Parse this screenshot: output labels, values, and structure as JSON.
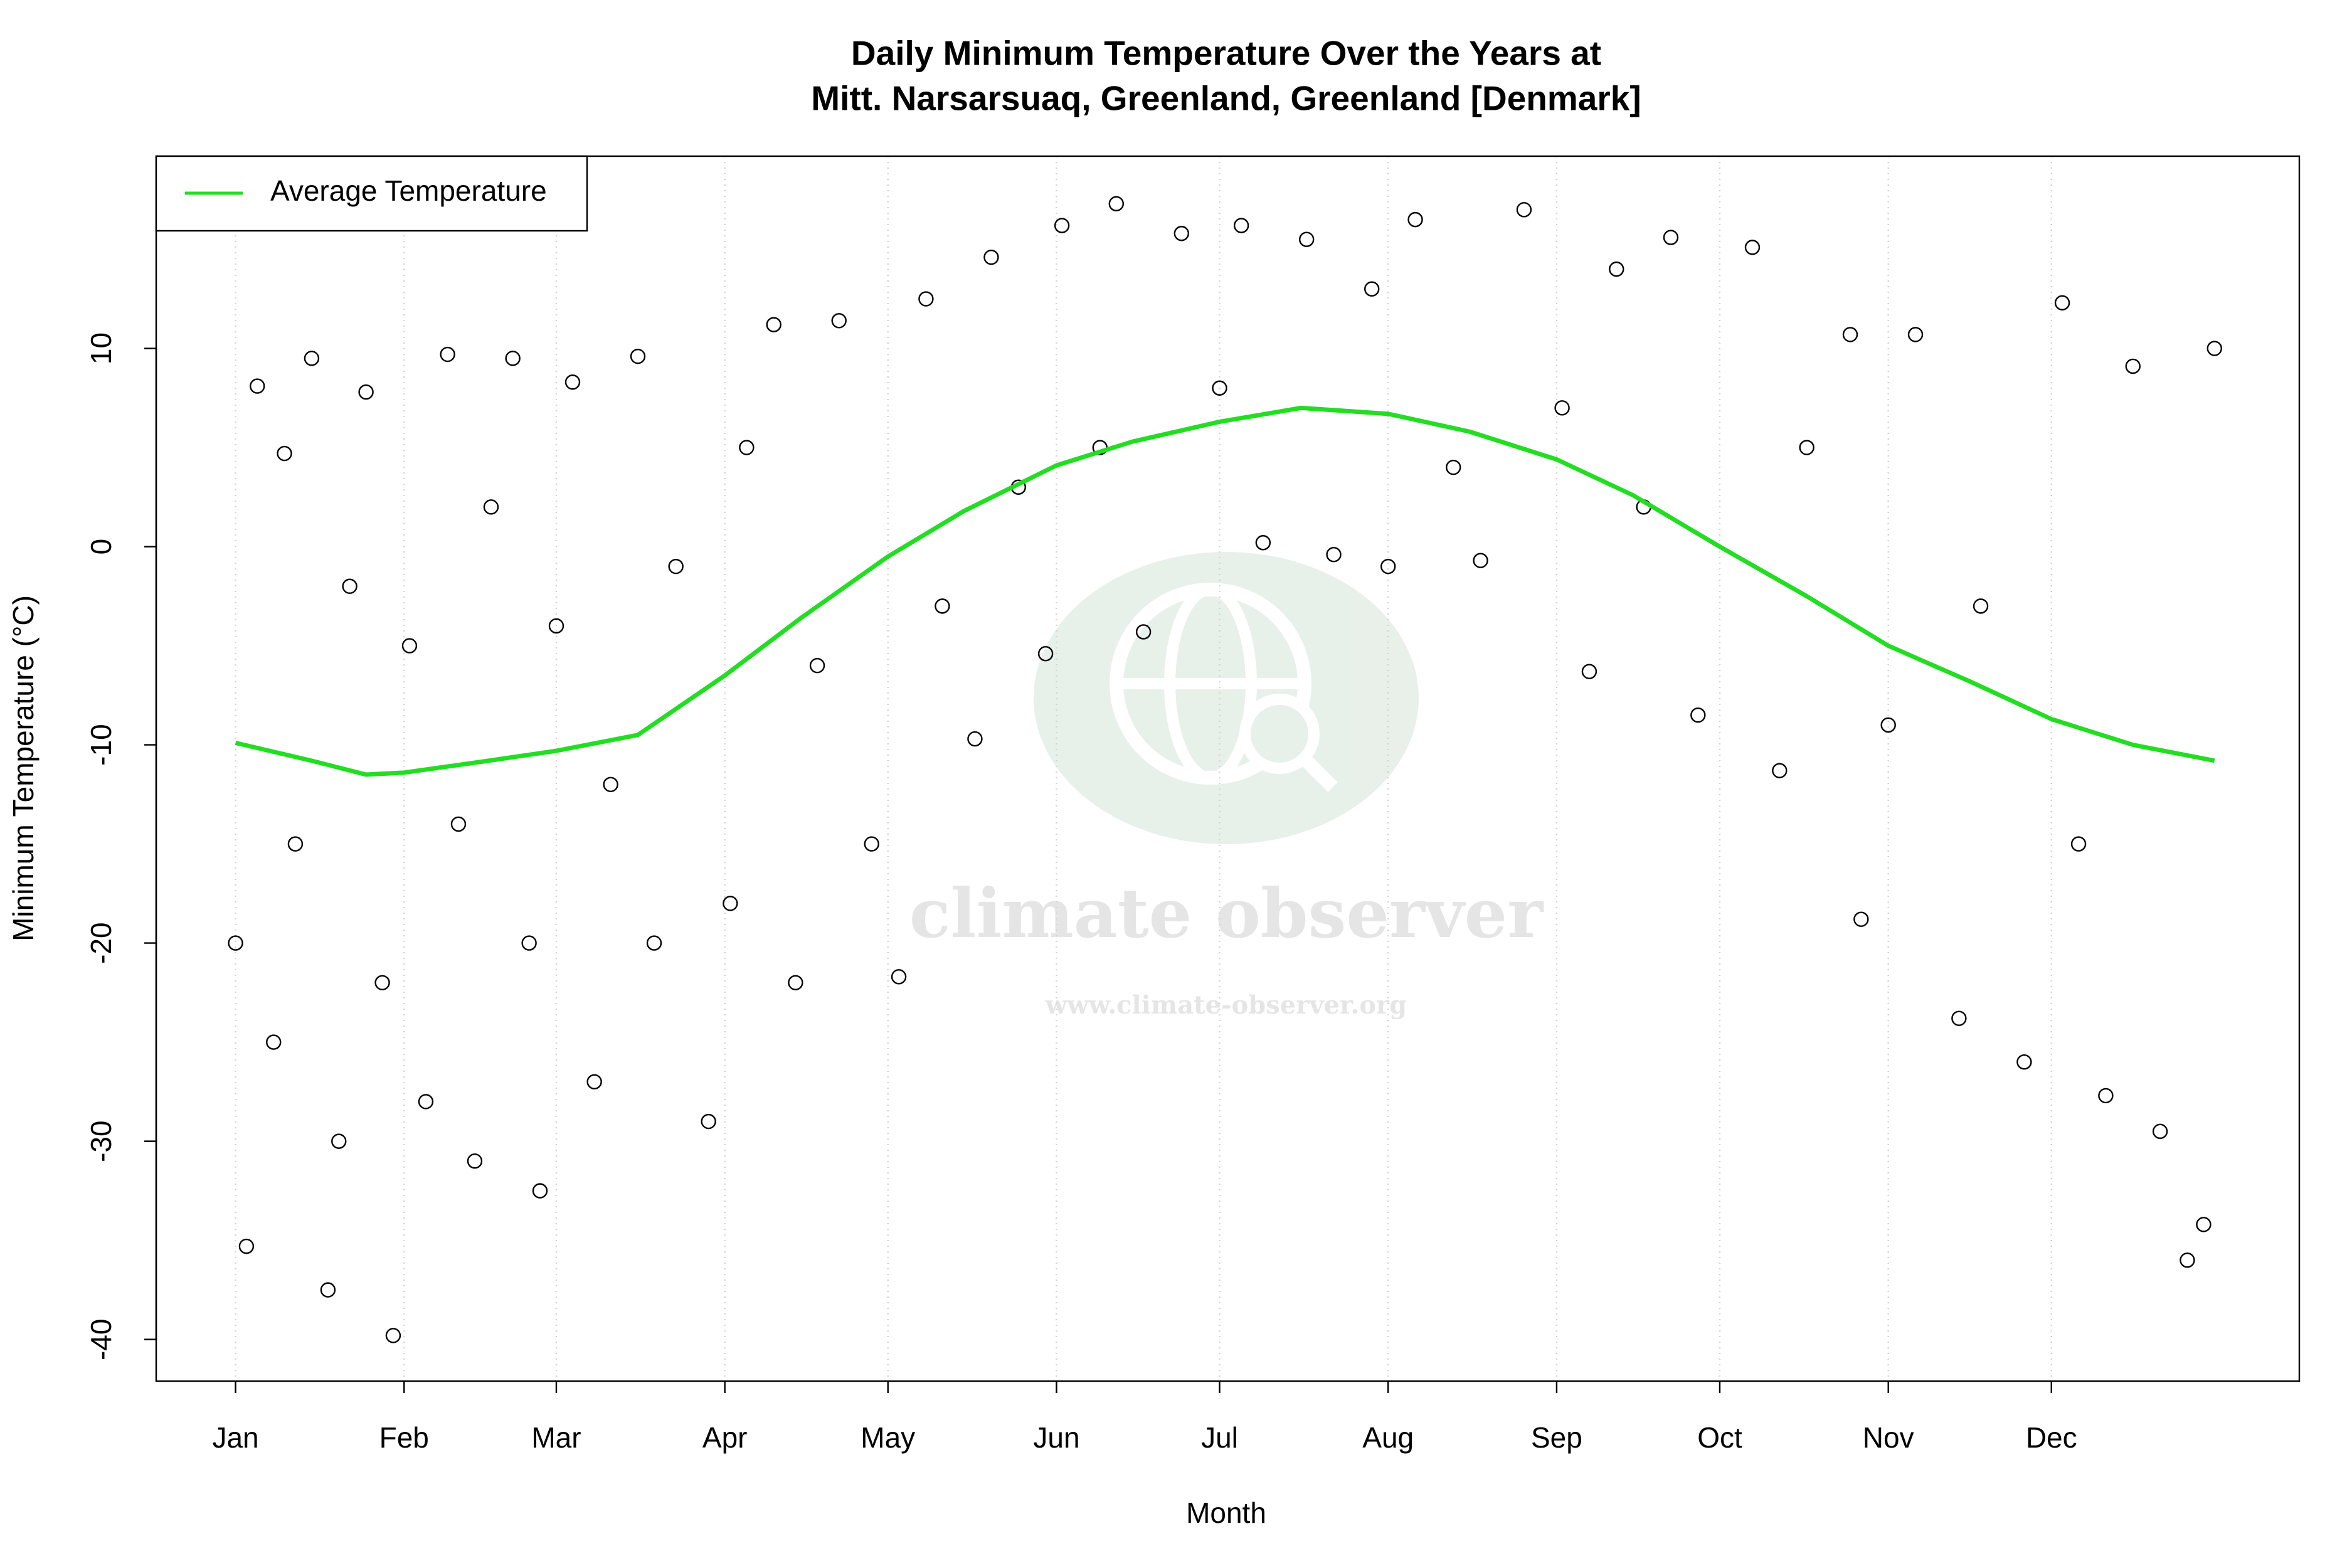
{
  "chart_data": {
    "type": "scatter",
    "title": [
      "Daily Minimum Temperature Over the Years at",
      "Mitt. Narsarsuaq, Greenland, Greenland [Denmark]"
    ],
    "xlabel": "Month",
    "ylabel": "Minimum Temperature (°C)",
    "xlim": [
      -13.6,
      380.6
    ],
    "ylim": [
      -42.1,
      19.7
    ],
    "xticks": [
      {
        "value": 1,
        "label": "Jan"
      },
      {
        "value": 32,
        "label": "Feb"
      },
      {
        "value": 60,
        "label": "Mar"
      },
      {
        "value": 91,
        "label": "Apr"
      },
      {
        "value": 121,
        "label": "May"
      },
      {
        "value": 152,
        "label": "Jun"
      },
      {
        "value": 182,
        "label": "Jul"
      },
      {
        "value": 213,
        "label": "Aug"
      },
      {
        "value": 244,
        "label": "Sep"
      },
      {
        "value": 274,
        "label": "Oct"
      },
      {
        "value": 305,
        "label": "Nov"
      },
      {
        "value": 335,
        "label": "Dec"
      }
    ],
    "yticks": [
      -40,
      -30,
      -20,
      -10,
      0,
      10
    ],
    "grid": true,
    "legend": "top-left",
    "points": {
      "color": "#000000",
      "x": [
        1,
        3,
        5,
        8,
        10,
        12,
        15,
        18,
        20,
        22,
        25,
        28,
        30,
        33,
        36,
        40,
        42,
        45,
        48,
        52,
        55,
        57,
        60,
        63,
        67,
        70,
        75,
        78,
        82,
        88,
        92,
        95,
        100,
        104,
        108,
        112,
        118,
        123,
        128,
        131,
        137,
        140,
        145,
        150,
        153,
        160,
        163,
        168,
        175,
        182,
        186,
        190,
        198,
        203,
        210,
        213,
        218,
        225,
        230,
        238,
        245,
        250,
        255,
        260,
        265,
        270,
        280,
        285,
        290,
        298,
        300,
        305,
        310,
        318,
        322,
        330,
        337,
        340,
        345,
        350,
        355,
        360,
        363,
        365
      ],
      "y": [
        -20,
        -35.3,
        8.1,
        -25,
        4.7,
        -15,
        9.5,
        -37.5,
        -30,
        -2,
        7.8,
        -22,
        -39.8,
        -5,
        -28,
        9.7,
        -14,
        -31,
        2,
        9.5,
        -20,
        -32.5,
        -4,
        8.3,
        -27,
        -12,
        9.6,
        -20,
        -1,
        -29,
        -18,
        5,
        11.2,
        -22,
        -6,
        11.4,
        -15,
        -21.7,
        12.5,
        -3,
        -9.7,
        14.6,
        3,
        -5.4,
        16.2,
        5,
        17.3,
        -4.3,
        15.8,
        8,
        16.2,
        0.2,
        15.5,
        -0.4,
        13,
        -1,
        16.5,
        4,
        -0.7,
        17,
        7,
        -6.3,
        14,
        2,
        15.6,
        -8.5,
        15.1,
        -11.3,
        5,
        10.7,
        -18.8,
        -9,
        10.7,
        -23.8,
        -3,
        -26,
        12.3,
        -15,
        -27.7,
        9.1,
        -29.5,
        -36,
        -34.2,
        10
      ]
    },
    "series": [
      {
        "name": "Average Temperature",
        "color": "#22dd22",
        "x": [
          1,
          15,
          25,
          32,
          45,
          60,
          75,
          91,
          105,
          121,
          135,
          152,
          166,
          182,
          197,
          213,
          228,
          244,
          258,
          274,
          290,
          305,
          320,
          335,
          350,
          365
        ],
        "values": [
          -9.9,
          -10.8,
          -11.5,
          -11.4,
          -10.9,
          -10.3,
          -9.5,
          -6.5,
          -3.6,
          -0.5,
          1.8,
          4.1,
          5.3,
          6.3,
          7.0,
          6.7,
          5.8,
          4.4,
          2.6,
          0.0,
          -2.5,
          -5.0,
          -6.8,
          -8.7,
          -10.0,
          -10.8
        ]
      }
    ],
    "watermark": {
      "name": "climate observer",
      "url": "www.climate-observer.org"
    }
  }
}
